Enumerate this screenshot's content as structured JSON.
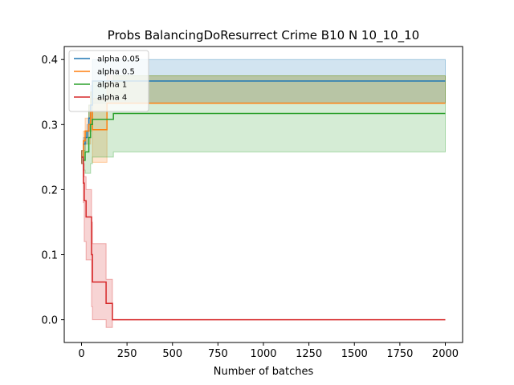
{
  "chart_data": {
    "type": "line",
    "title": "Probs BalancingDoResurrect Crime B10 N 10_10_10",
    "xlabel": "Number of batches",
    "ylabel": "",
    "xlim": [
      -95,
      2095
    ],
    "ylim": [
      -0.035,
      0.42
    ],
    "xticks": [
      0,
      250,
      500,
      750,
      1000,
      1250,
      1500,
      1750,
      2000
    ],
    "yticks": [
      0.0,
      0.1,
      0.2,
      0.3,
      0.4
    ],
    "grid": false,
    "legend": "top-left",
    "series": [
      {
        "name": "alpha 0.05",
        "color": "#1f77b4",
        "x": [
          0,
          10,
          20,
          30,
          40,
          50,
          60,
          2000
        ],
        "y": [
          0.25,
          0.27,
          0.28,
          0.29,
          0.31,
          0.33,
          0.367,
          0.367
        ],
        "upper": [
          0.26,
          0.28,
          0.29,
          0.3,
          0.33,
          0.36,
          0.4,
          0.4
        ],
        "lower": [
          0.24,
          0.26,
          0.27,
          0.28,
          0.29,
          0.3,
          0.333,
          0.333
        ]
      },
      {
        "name": "alpha 0.5",
        "color": "#ff7f0e",
        "x": [
          0,
          10,
          20,
          30,
          40,
          50,
          60,
          125,
          140,
          2000
        ],
        "y": [
          0.25,
          0.275,
          0.29,
          0.29,
          0.3,
          0.32,
          0.292,
          0.292,
          0.333,
          0.333
        ],
        "upper": [
          0.26,
          0.29,
          0.31,
          0.31,
          0.33,
          0.35,
          0.34,
          0.34,
          0.375,
          0.375
        ],
        "lower": [
          0.24,
          0.26,
          0.27,
          0.27,
          0.27,
          0.29,
          0.242,
          0.242,
          0.333,
          0.333
        ]
      },
      {
        "name": "alpha 1",
        "color": "#2ca02c",
        "x": [
          0,
          10,
          20,
          30,
          40,
          50,
          60,
          160,
          175,
          2000
        ],
        "y": [
          0.25,
          0.245,
          0.258,
          0.258,
          0.28,
          0.3,
          0.308,
          0.308,
          0.317,
          0.317
        ],
        "upper": [
          0.26,
          0.26,
          0.29,
          0.29,
          0.33,
          0.35,
          0.367,
          0.367,
          0.375,
          0.375
        ],
        "lower": [
          0.24,
          0.23,
          0.225,
          0.225,
          0.225,
          0.24,
          0.25,
          0.25,
          0.258,
          0.258
        ]
      },
      {
        "name": "alpha 4",
        "color": "#d62728",
        "x": [
          0,
          10,
          15,
          25,
          40,
          55,
          60,
          70,
          120,
          135,
          150,
          165,
          170,
          2000
        ],
        "y": [
          0.25,
          0.21,
          0.183,
          0.158,
          0.158,
          0.1,
          0.058,
          0.058,
          0.058,
          0.025,
          0.025,
          0.025,
          0.0,
          0.0
        ],
        "upper": [
          0.26,
          0.24,
          0.22,
          0.2,
          0.2,
          0.15,
          0.117,
          0.117,
          0.117,
          0.062,
          0.062,
          0.062,
          0.0,
          0.0
        ],
        "lower": [
          0.24,
          0.18,
          0.12,
          0.092,
          0.092,
          0.02,
          0.0,
          0.0,
          0.0,
          -0.012,
          -0.012,
          -0.012,
          0.0,
          0.0
        ]
      }
    ]
  }
}
